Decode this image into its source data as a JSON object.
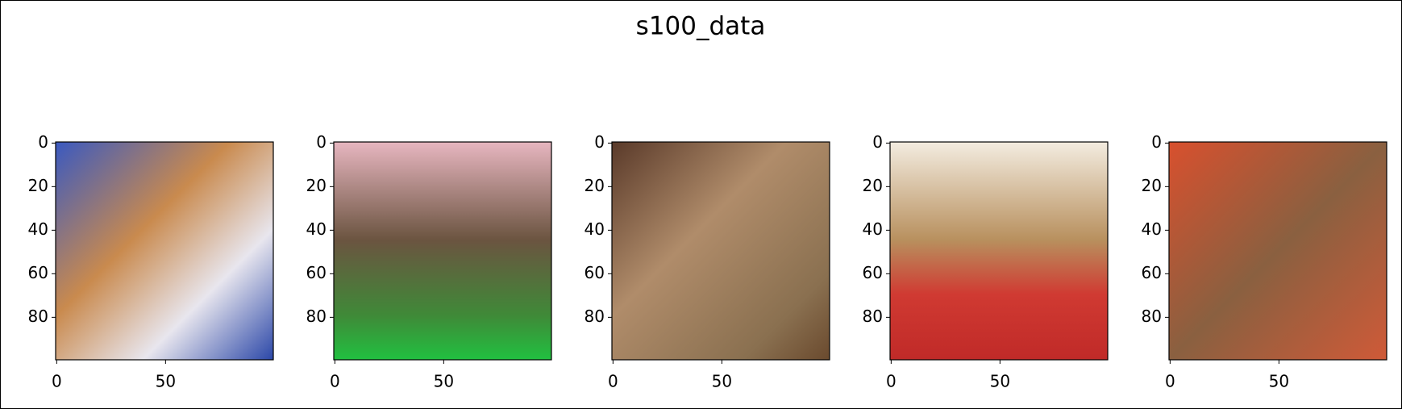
{
  "title": "s100_data",
  "chart_data": [
    {
      "type": "image",
      "xlim": [
        -0.5,
        99.5
      ],
      "ylim": [
        99.5,
        -0.5
      ],
      "xticks": [
        0,
        50
      ],
      "yticks": [
        0,
        20,
        40,
        60,
        80
      ]
    },
    {
      "type": "image",
      "xlim": [
        -0.5,
        99.5
      ],
      "ylim": [
        99.5,
        -0.5
      ],
      "xticks": [
        0,
        50
      ],
      "yticks": [
        0,
        20,
        40,
        60,
        80
      ]
    },
    {
      "type": "image",
      "xlim": [
        -0.5,
        99.5
      ],
      "ylim": [
        99.5,
        -0.5
      ],
      "xticks": [
        0,
        50
      ],
      "yticks": [
        0,
        20,
        40,
        60,
        80
      ]
    },
    {
      "type": "image",
      "xlim": [
        -0.5,
        99.5
      ],
      "ylim": [
        99.5,
        -0.5
      ],
      "xticks": [
        0,
        50
      ],
      "yticks": [
        0,
        20,
        40,
        60,
        80
      ]
    },
    {
      "type": "image",
      "xlim": [
        -0.5,
        99.5
      ],
      "ylim": [
        99.5,
        -0.5
      ],
      "xticks": [
        0,
        50
      ],
      "yticks": [
        0,
        20,
        40,
        60,
        80
      ]
    }
  ]
}
